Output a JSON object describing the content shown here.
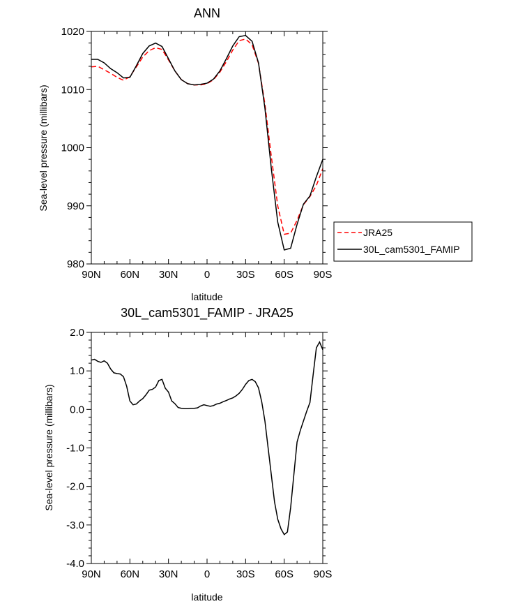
{
  "chart_data": [
    {
      "type": "line",
      "title": "ANN",
      "xlabel": "latitude",
      "ylabel": "Sea-level pressure (millibars)",
      "xlim": [
        90,
        -90
      ],
      "ylim": [
        980,
        1020
      ],
      "x_ticks": [
        90,
        60,
        30,
        0,
        -30,
        -60,
        -90
      ],
      "x_tick_labels": [
        "90N",
        "60N",
        "30N",
        "0",
        "30S",
        "60S",
        "90S"
      ],
      "y_ticks": [
        980,
        990,
        1000,
        1010,
        1020
      ],
      "y_tick_labels": [
        "980",
        "990",
        "1000",
        "1010",
        "1020"
      ],
      "legend_position": "right",
      "series": [
        {
          "name": "JRA25",
          "color": "#ff0000",
          "dash": "dashed",
          "x": [
            90,
            85,
            80,
            75,
            70,
            65,
            60,
            55,
            50,
            45,
            40,
            35,
            30,
            25,
            20,
            15,
            10,
            5,
            0,
            -5,
            -10,
            -15,
            -20,
            -25,
            -30,
            -35,
            -40,
            -45,
            -50,
            -55,
            -60,
            -65,
            -70,
            -75,
            -80,
            -85,
            -90
          ],
          "values": [
            1013.9,
            1014.0,
            1013.4,
            1012.8,
            1012.1,
            1011.6,
            1012.2,
            1013.9,
            1015.6,
            1016.7,
            1017.2,
            1016.9,
            1015.1,
            1013.2,
            1011.7,
            1011.0,
            1010.8,
            1010.8,
            1011.0,
            1011.7,
            1013.0,
            1014.8,
            1016.8,
            1018.4,
            1018.7,
            1017.7,
            1014.5,
            1007.5,
            998.5,
            990.0,
            985.1,
            985.3,
            987.5,
            990.2,
            991.6,
            993.5,
            996.4
          ]
        },
        {
          "name": "30L_cam5301_FAMIP",
          "color": "#000000",
          "dash": "solid",
          "x": [
            90,
            85,
            80,
            75,
            70,
            65,
            60,
            55,
            50,
            45,
            40,
            35,
            30,
            25,
            20,
            15,
            10,
            5,
            0,
            -5,
            -10,
            -15,
            -20,
            -25,
            -30,
            -35,
            -40,
            -45,
            -50,
            -55,
            -60,
            -65,
            -70,
            -75,
            -80,
            -85,
            -90
          ],
          "values": [
            1015.2,
            1015.2,
            1014.6,
            1013.6,
            1012.9,
            1012.0,
            1012.1,
            1014.1,
            1016.2,
            1017.5,
            1018.0,
            1017.4,
            1015.3,
            1013.2,
            1011.7,
            1011.0,
            1010.8,
            1010.9,
            1011.1,
            1011.8,
            1013.2,
            1015.3,
            1017.5,
            1019.1,
            1019.3,
            1018.3,
            1014.6,
            1006.8,
            996.4,
            987.2,
            982.4,
            982.7,
            986.8,
            990.3,
            991.7,
            995.0,
            998.0
          ]
        }
      ]
    },
    {
      "type": "line",
      "title": "30L_cam5301_FAMIP - JRA25",
      "xlabel": "latitude",
      "ylabel": "Sea-level pressure (millibars)",
      "xlim": [
        90,
        -90
      ],
      "ylim": [
        -4.0,
        2.0
      ],
      "x_ticks": [
        90,
        60,
        30,
        0,
        -30,
        -60,
        -90
      ],
      "x_tick_labels": [
        "90N",
        "60N",
        "30N",
        "0",
        "30S",
        "60S",
        "90S"
      ],
      "y_ticks": [
        -4.0,
        -3.0,
        -2.0,
        -1.0,
        0.0,
        1.0,
        2.0
      ],
      "y_tick_labels": [
        "-4.0",
        "-3.0",
        "-2.0",
        "-1.0",
        "0.0",
        "1.0",
        "2.0"
      ],
      "series": [
        {
          "name": "30L_cam5301_FAMIP - JRA25",
          "color": "#000000",
          "dash": "solid",
          "x": [
            90,
            87.5,
            85,
            82.5,
            80,
            77.5,
            75,
            72.5,
            70,
            67.5,
            65,
            62.5,
            60,
            57.5,
            55,
            52.5,
            50,
            47.5,
            45,
            42.5,
            40,
            37.5,
            35,
            32.5,
            30,
            27.5,
            25,
            22.5,
            20,
            17.5,
            15,
            12.5,
            10,
            7.5,
            5,
            2.5,
            0,
            -2.5,
            -5,
            -7.5,
            -10,
            -12.5,
            -15,
            -17.5,
            -20,
            -22.5,
            -25,
            -27.5,
            -30,
            -32.5,
            -35,
            -37.5,
            -40,
            -42.5,
            -45,
            -47.5,
            -50,
            -52.5,
            -55,
            -57.5,
            -60,
            -62.5,
            -65,
            -67.5,
            -70,
            -72.5,
            -75,
            -77.5,
            -80,
            -82.5,
            -85,
            -87.5,
            -90
          ],
          "values": [
            1.28,
            1.3,
            1.25,
            1.22,
            1.26,
            1.2,
            1.05,
            0.95,
            0.93,
            0.92,
            0.85,
            0.6,
            0.22,
            0.12,
            0.14,
            0.22,
            0.28,
            0.38,
            0.5,
            0.52,
            0.58,
            0.75,
            0.78,
            0.55,
            0.45,
            0.22,
            0.15,
            0.05,
            0.03,
            0.02,
            0.02,
            0.03,
            0.03,
            0.04,
            0.09,
            0.12,
            0.1,
            0.08,
            0.1,
            0.14,
            0.16,
            0.2,
            0.23,
            0.27,
            0.3,
            0.35,
            0.42,
            0.52,
            0.65,
            0.75,
            0.78,
            0.72,
            0.56,
            0.2,
            -0.3,
            -1.0,
            -1.7,
            -2.4,
            -2.85,
            -3.1,
            -3.25,
            -3.18,
            -2.55,
            -1.7,
            -0.85,
            -0.55,
            -0.3,
            -0.05,
            0.18,
            0.9,
            1.6,
            1.75,
            1.55
          ]
        }
      ]
    }
  ],
  "legend": {
    "items": [
      {
        "label": "JRA25"
      },
      {
        "label": "30L_cam5301_FAMIP"
      }
    ]
  }
}
